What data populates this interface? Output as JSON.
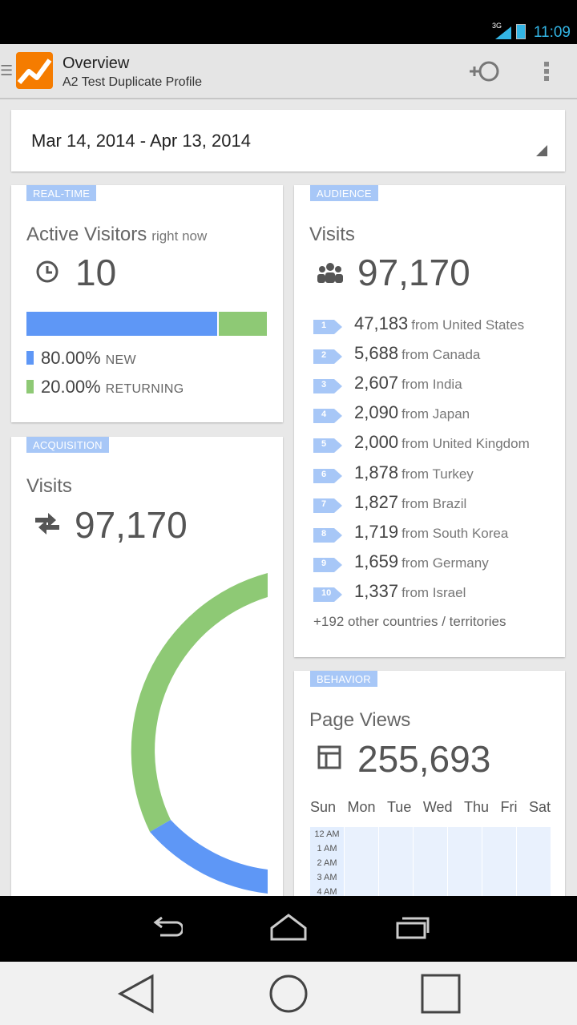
{
  "status_bar": {
    "network": "3G",
    "time": "11:09",
    "accent_color": "#33b5e5"
  },
  "action_bar": {
    "title": "Overview",
    "subtitle": "A2 Test Duplicate Profile",
    "segment_icon": "segment-icon",
    "overflow_icon": "overflow-menu-icon"
  },
  "date_range": {
    "label": "Mar 14, 2014 - Apr 13, 2014"
  },
  "realtime": {
    "tag": "REAL-TIME",
    "title": "Active Visitors",
    "subtitle": "right now",
    "icon": "clock-icon",
    "value": "10",
    "new_fraction": 0.8,
    "legend": [
      {
        "pct": "80.00%",
        "label": "NEW",
        "color": "#5e97f6"
      },
      {
        "pct": "20.00%",
        "label": "RETURNING",
        "color": "#8ec975"
      }
    ]
  },
  "acquisition": {
    "tag": "ACQUISITION",
    "title": "Visits",
    "icon": "swap-arrows-icon",
    "value": "97,170",
    "donut_colors": [
      "#8ec975",
      "#5e97f6"
    ]
  },
  "audience": {
    "tag": "AUDIENCE",
    "title": "Visits",
    "icon": "people-icon",
    "value": "97,170",
    "from_word": "from",
    "countries": [
      {
        "rank": "1",
        "value": "47,183",
        "country": "United States"
      },
      {
        "rank": "2",
        "value": "5,688",
        "country": "Canada"
      },
      {
        "rank": "3",
        "value": "2,607",
        "country": "India"
      },
      {
        "rank": "4",
        "value": "2,090",
        "country": "Japan"
      },
      {
        "rank": "5",
        "value": "2,000",
        "country": "United Kingdom"
      },
      {
        "rank": "6",
        "value": "1,878",
        "country": "Turkey"
      },
      {
        "rank": "7",
        "value": "1,827",
        "country": "Brazil"
      },
      {
        "rank": "8",
        "value": "1,719",
        "country": "South Korea"
      },
      {
        "rank": "9",
        "value": "1,659",
        "country": "Germany"
      },
      {
        "rank": "10",
        "value": "1,337",
        "country": "Israel"
      }
    ],
    "others": "+192 other countries / territories"
  },
  "behavior": {
    "tag": "BEHAVIOR",
    "title": "Page Views",
    "icon": "page-layout-icon",
    "value": "255,693",
    "days": [
      "Sun",
      "Mon",
      "Tue",
      "Wed",
      "Thu",
      "Fri",
      "Sat"
    ],
    "hours": [
      "12 AM",
      "1 AM",
      "2 AM",
      "3 AM",
      "4 AM"
    ]
  },
  "tag_color": "#a7c7f7"
}
